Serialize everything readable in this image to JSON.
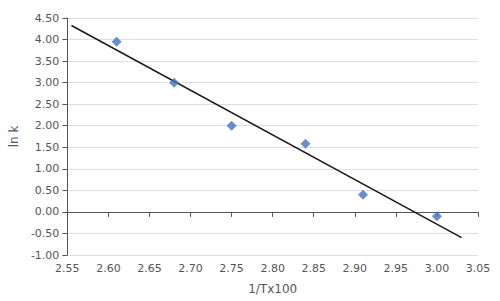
{
  "chart_data": {
    "type": "scatter",
    "xlabel": "1/Tx100",
    "ylabel": "ln k",
    "series": [
      {
        "type": "scatter",
        "marker": "diamond",
        "color": "#4472C4",
        "x": [
          2.61,
          2.68,
          2.75,
          2.84,
          2.91,
          3.0
        ],
        "values": [
          3.95,
          3.0,
          2.0,
          1.58,
          0.4,
          -0.1
        ]
      },
      {
        "type": "line",
        "color": "#1a1a1a",
        "x": [
          2.555,
          3.03
        ],
        "values": [
          4.32596,
          -0.59509
        ]
      }
    ],
    "xlim": [
      2.55,
      3.05
    ],
    "xticks": [
      2.55,
      {
        "value": 2.6,
        "label": "2.60"
      },
      2.65,
      {
        "value": 2.7,
        "label": "2.70"
      },
      2.75,
      {
        "value": 2.8,
        "label": "2.80"
      },
      2.85,
      {
        "value": 2.9,
        "label": "2.90"
      },
      2.95,
      {
        "value": 3,
        "label": "3.00"
      },
      3.05
    ],
    "ylim": [
      -1.0,
      4.5
    ],
    "yticks": [
      {
        "value": -1,
        "label": "-1.00"
      },
      {
        "value": -0.5,
        "label": "-0.50"
      },
      {
        "value": 0,
        "label": "0.00"
      },
      {
        "value": 0.5,
        "label": "0.50"
      },
      {
        "value": 1,
        "label": "1.00"
      },
      {
        "value": 1.5,
        "label": "1.50"
      },
      {
        "value": 2,
        "label": "2.00"
      },
      {
        "value": 2.5,
        "label": "2.50"
      },
      {
        "value": 3,
        "label": "3.00"
      },
      {
        "value": 3.5,
        "label": "3.50"
      },
      {
        "value": 4,
        "label": "4.00"
      },
      {
        "value": 4.5,
        "label": "4.50"
      }
    ],
    "grid": "y"
  }
}
